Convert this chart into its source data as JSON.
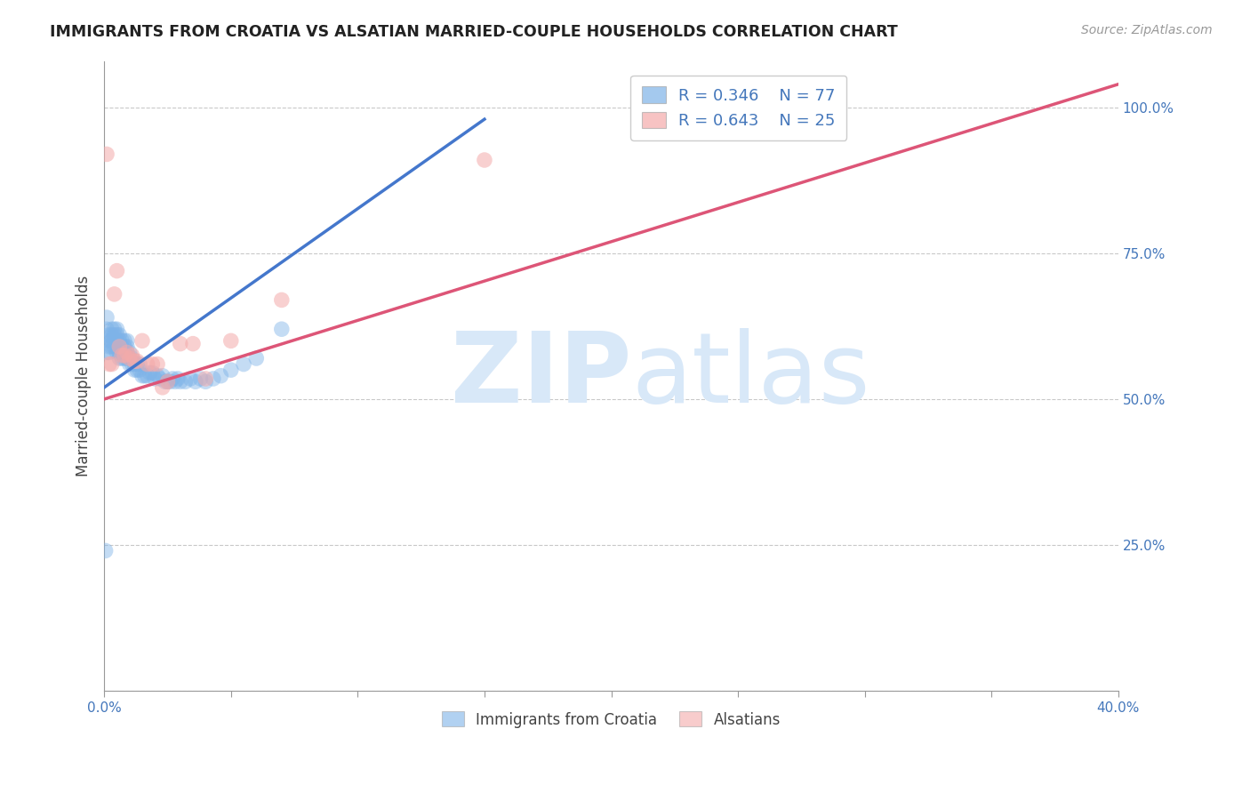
{
  "title": "IMMIGRANTS FROM CROATIA VS ALSATIAN MARRIED-COUPLE HOUSEHOLDS CORRELATION CHART",
  "source": "Source: ZipAtlas.com",
  "ylabel": "Married-couple Households",
  "xlim": [
    0.0,
    0.4
  ],
  "ylim": [
    0.0,
    1.08
  ],
  "blue_color": "#7EB3E8",
  "pink_color": "#F4AAAA",
  "blue_line_color": "#4477CC",
  "pink_line_color": "#DD5577",
  "legend_r_blue": "R = 0.346",
  "legend_n_blue": "N = 77",
  "legend_r_pink": "R = 0.643",
  "legend_n_pink": "N = 25",
  "blue_scatter_x": [
    0.0005,
    0.001,
    0.001,
    0.001,
    0.002,
    0.002,
    0.002,
    0.002,
    0.003,
    0.003,
    0.003,
    0.003,
    0.003,
    0.004,
    0.004,
    0.004,
    0.004,
    0.005,
    0.005,
    0.005,
    0.005,
    0.005,
    0.006,
    0.006,
    0.006,
    0.006,
    0.006,
    0.007,
    0.007,
    0.007,
    0.007,
    0.008,
    0.008,
    0.008,
    0.008,
    0.009,
    0.009,
    0.009,
    0.009,
    0.01,
    0.01,
    0.01,
    0.011,
    0.011,
    0.012,
    0.012,
    0.013,
    0.013,
    0.014,
    0.014,
    0.015,
    0.016,
    0.017,
    0.018,
    0.019,
    0.02,
    0.021,
    0.022,
    0.023,
    0.024,
    0.025,
    0.026,
    0.027,
    0.028,
    0.029,
    0.03,
    0.032,
    0.034,
    0.036,
    0.038,
    0.04,
    0.043,
    0.046,
    0.05,
    0.055,
    0.06,
    0.07
  ],
  "blue_scatter_y": [
    0.24,
    0.58,
    0.62,
    0.64,
    0.58,
    0.59,
    0.6,
    0.61,
    0.59,
    0.6,
    0.6,
    0.61,
    0.62,
    0.59,
    0.6,
    0.61,
    0.62,
    0.58,
    0.59,
    0.6,
    0.61,
    0.62,
    0.57,
    0.58,
    0.59,
    0.6,
    0.61,
    0.57,
    0.58,
    0.59,
    0.6,
    0.57,
    0.58,
    0.59,
    0.6,
    0.57,
    0.58,
    0.59,
    0.6,
    0.56,
    0.57,
    0.58,
    0.56,
    0.57,
    0.55,
    0.56,
    0.55,
    0.56,
    0.55,
    0.56,
    0.54,
    0.54,
    0.54,
    0.545,
    0.545,
    0.535,
    0.54,
    0.535,
    0.54,
    0.53,
    0.53,
    0.53,
    0.535,
    0.53,
    0.535,
    0.53,
    0.53,
    0.535,
    0.53,
    0.535,
    0.53,
    0.535,
    0.54,
    0.55,
    0.56,
    0.57,
    0.62
  ],
  "pink_scatter_x": [
    0.001,
    0.002,
    0.003,
    0.004,
    0.005,
    0.006,
    0.007,
    0.008,
    0.009,
    0.01,
    0.011,
    0.012,
    0.013,
    0.015,
    0.017,
    0.019,
    0.021,
    0.023,
    0.025,
    0.03,
    0.035,
    0.04,
    0.05,
    0.07,
    0.15
  ],
  "pink_scatter_y": [
    0.92,
    0.56,
    0.56,
    0.68,
    0.72,
    0.59,
    0.575,
    0.575,
    0.58,
    0.57,
    0.575,
    0.565,
    0.565,
    0.6,
    0.56,
    0.56,
    0.56,
    0.52,
    0.53,
    0.595,
    0.595,
    0.535,
    0.6,
    0.67,
    0.91
  ],
  "blue_trend_x": [
    0.0,
    0.15
  ],
  "blue_trend_y": [
    0.52,
    0.98
  ],
  "pink_trend_x": [
    0.0,
    0.4
  ],
  "pink_trend_y": [
    0.5,
    1.04
  ]
}
